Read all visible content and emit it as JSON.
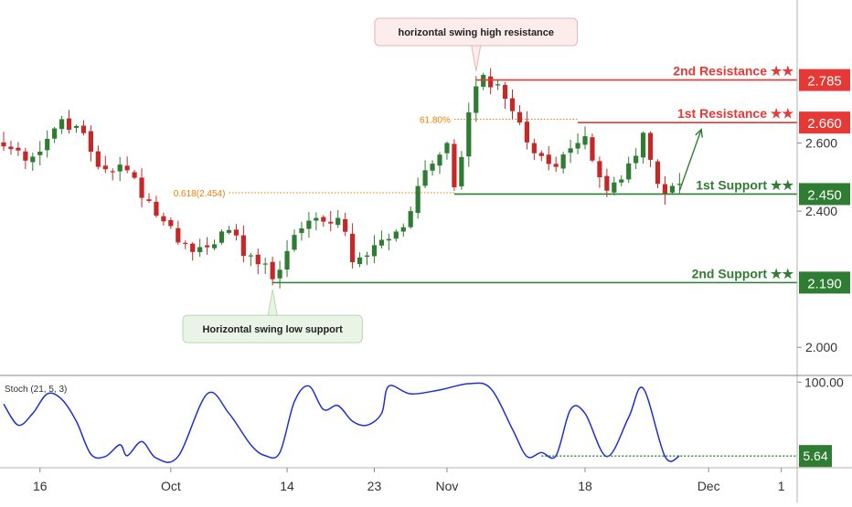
{
  "colors": {
    "up": "#26a69a",
    "up_body": "#2e7d32",
    "down": "#c62828",
    "resistance": "#e53935",
    "support": "#2e7d32",
    "fib": "#f57c00",
    "stoch": "#1e2fd6"
  },
  "chart_data": [
    {
      "type": "candlestick",
      "title": "",
      "y_axis": {
        "ticks": [
          {
            "value": 2.6,
            "label": "2.600"
          },
          {
            "value": 2.4,
            "label": "2.400"
          },
          {
            "value": 2.0,
            "label": "2.000"
          }
        ],
        "ylim": [
          1.92,
          3.02
        ],
        "side": "right"
      },
      "x_axis": {
        "ticks": [
          {
            "bar": 5,
            "label": "16"
          },
          {
            "bar": 23,
            "label": "Oct"
          },
          {
            "bar": 39,
            "label": "14"
          },
          {
            "bar": 51,
            "label": "23"
          },
          {
            "bar": 61,
            "label": "Nov"
          },
          {
            "bar": 80,
            "label": "18"
          },
          {
            "bar": 97,
            "label": "Dec"
          },
          {
            "bar": 107,
            "label": "1"
          }
        ],
        "bar_count": 110
      },
      "levels": [
        {
          "name": "2nd Resistance ★★",
          "value": 2.785,
          "label": "2.785",
          "kind": "resistance",
          "start_bar": 65
        },
        {
          "name": "1st Resistance ★★",
          "value": 2.66,
          "label": "2.660",
          "kind": "resistance",
          "start_bar": 79
        },
        {
          "name": "1st Support ★★",
          "value": 2.45,
          "label": "2.450",
          "kind": "support",
          "start_bar": 62
        },
        {
          "name": "2nd Support ★★",
          "value": 2.19,
          "label": "2.190",
          "kind": "support",
          "start_bar": 37
        }
      ],
      "fib_levels": [
        {
          "label": "0.618(2.454)",
          "value": 2.454,
          "start_bar": 31
        },
        {
          "label": "61.80%",
          "value": 2.67,
          "start_bar": 62
        }
      ],
      "annotations": [
        {
          "text": "horizontal swing high resistance",
          "target_bar": 65,
          "target_value": 2.8,
          "placement": "above"
        },
        {
          "text": "Horizontal swing low support",
          "target_bar": 37,
          "target_value": 2.18,
          "placement": "below"
        }
      ],
      "arrow": {
        "from_bar": 93,
        "from_value": 2.46,
        "to_bar": 96,
        "to_value": 2.64
      },
      "anchors": [
        [
          0,
          2.59
        ],
        [
          4,
          2.56
        ],
        [
          8,
          2.67
        ],
        [
          10,
          2.65
        ],
        [
          13,
          2.53
        ],
        [
          17,
          2.52
        ],
        [
          22,
          2.37
        ],
        [
          26,
          2.28
        ],
        [
          30,
          2.34
        ],
        [
          34,
          2.27
        ],
        [
          37,
          2.2
        ],
        [
          40,
          2.33
        ],
        [
          43,
          2.38
        ],
        [
          46,
          2.38
        ],
        [
          48,
          2.25
        ],
        [
          51,
          2.3
        ],
        [
          54,
          2.34
        ],
        [
          56,
          2.4
        ],
        [
          58,
          2.52
        ],
        [
          61,
          2.6
        ],
        [
          62,
          2.47
        ],
        [
          64,
          2.69
        ],
        [
          66,
          2.8
        ],
        [
          69,
          2.73
        ],
        [
          71,
          2.66
        ],
        [
          73,
          2.57
        ],
        [
          76,
          2.53
        ],
        [
          79,
          2.6
        ],
        [
          80,
          2.62
        ],
        [
          83,
          2.46
        ],
        [
          86,
          2.54
        ],
        [
          88,
          2.63
        ],
        [
          90,
          2.48
        ],
        [
          91,
          2.45
        ],
        [
          93,
          2.48
        ]
      ]
    },
    {
      "type": "line",
      "title": "Stoch (21, 5, 3)",
      "y_axis": {
        "ticks": [
          {
            "value": 100,
            "label": "100.00"
          }
        ],
        "ylim": [
          0,
          105
        ]
      },
      "current": {
        "value": 5.64,
        "label": "5.64",
        "start_bar": 74
      },
      "points": [
        [
          0,
          72
        ],
        [
          2,
          45
        ],
        [
          4,
          60
        ],
        [
          6,
          85
        ],
        [
          8,
          78
        ],
        [
          10,
          50
        ],
        [
          12,
          8
        ],
        [
          14,
          5
        ],
        [
          16,
          20
        ],
        [
          17,
          6
        ],
        [
          19,
          24
        ],
        [
          21,
          3
        ],
        [
          24,
          5
        ],
        [
          28,
          85
        ],
        [
          31,
          60
        ],
        [
          34,
          20
        ],
        [
          36,
          6
        ],
        [
          38,
          10
        ],
        [
          40,
          75
        ],
        [
          42,
          95
        ],
        [
          44,
          65
        ],
        [
          46,
          70
        ],
        [
          48,
          50
        ],
        [
          50,
          45
        ],
        [
          52,
          60
        ],
        [
          53,
          95
        ],
        [
          56,
          85
        ],
        [
          60,
          90
        ],
        [
          64,
          98
        ],
        [
          67,
          92
        ],
        [
          70,
          40
        ],
        [
          72,
          5
        ],
        [
          74,
          10
        ],
        [
          76,
          6
        ],
        [
          78,
          65
        ],
        [
          80,
          60
        ],
        [
          83,
          5
        ],
        [
          86,
          55
        ],
        [
          88,
          92
        ],
        [
          91,
          5
        ],
        [
          93,
          5.64
        ]
      ]
    }
  ]
}
